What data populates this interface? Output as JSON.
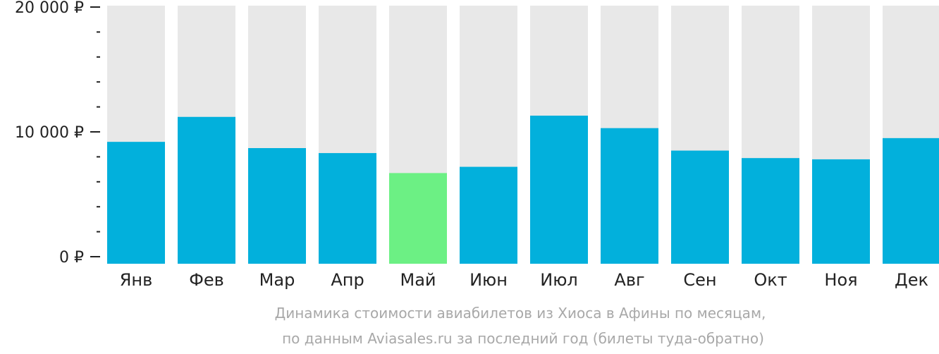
{
  "chart_data": {
    "type": "bar",
    "categories": [
      "Янв",
      "Фев",
      "Мар",
      "Апр",
      "Май",
      "Июн",
      "Июл",
      "Авг",
      "Сен",
      "Окт",
      "Ноя",
      "Дек"
    ],
    "values": [
      9200,
      11200,
      8700,
      8300,
      6700,
      7200,
      11300,
      10300,
      8500,
      7900,
      7800,
      9500
    ],
    "highlight_index": 4,
    "ylim": [
      0,
      20000
    ],
    "yticks": [
      {
        "value": 0,
        "label": "0 ₽"
      },
      {
        "value": 10000,
        "label": "10 000 ₽"
      },
      {
        "value": 20000,
        "label": "20 000 ₽"
      }
    ],
    "minor_tick_step": 2000,
    "caption": [
      "Динамика стоимости авиабилетов из Хиоса в Афины по месяцам,",
      "по данным Aviasales.ru за последний год (билеты туда-обратно)"
    ],
    "colors": {
      "bar": "#02b0dc",
      "highlight": "#6cf084",
      "track": "#e8e8e8",
      "axis": "#222222",
      "text": "#222222",
      "caption": "#a8a8a8"
    },
    "grid": false,
    "legend": "none"
  }
}
